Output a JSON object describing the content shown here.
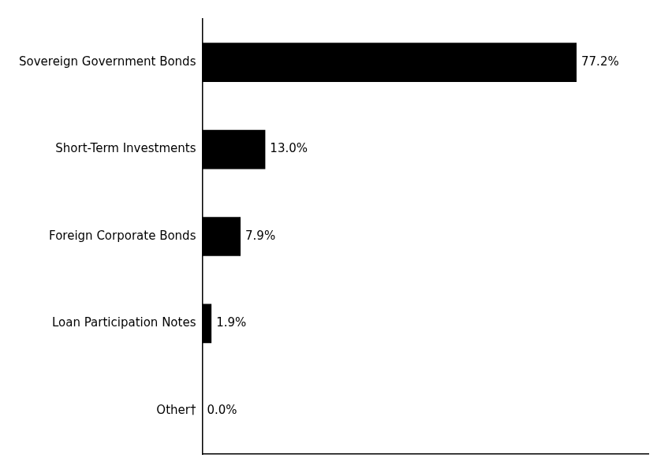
{
  "chart_data": {
    "type": "bar",
    "orientation": "horizontal",
    "categories": [
      "Sovereign Government Bonds",
      "Short-Term Investments",
      "Foreign Corporate Bonds",
      "Loan Participation Notes",
      "Other†"
    ],
    "values": [
      77.2,
      13.0,
      7.9,
      1.9,
      0.0
    ],
    "value_labels": [
      "77.2%",
      "13.0%",
      "7.9%",
      "1.9%",
      "0.0%"
    ],
    "color": "#000000",
    "xlim": [
      0,
      92
    ],
    "data_labels": true,
    "tick_labels": "y",
    "grid": false
  }
}
